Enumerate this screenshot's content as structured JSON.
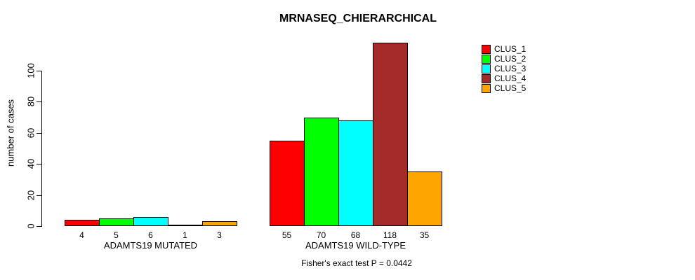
{
  "title": "MRNASEQ_CHIERARCHICAL",
  "footer": "Fisher's exact test P = 0.0442",
  "chart_data": {
    "type": "bar",
    "title": "MRNASEQ_CHIERARCHICAL",
    "ylabel": "number of cases",
    "xlabel": "",
    "categories": [
      "ADAMTS19 MUTATED",
      "ADAMTS19 WILD-TYPE"
    ],
    "series": [
      {
        "name": "CLUS_1",
        "color": "#FF0000",
        "values": [
          4,
          55
        ]
      },
      {
        "name": "CLUS_2",
        "color": "#00FF00",
        "values": [
          5,
          70
        ]
      },
      {
        "name": "CLUS_3",
        "color": "#00FFFF",
        "values": [
          6,
          68
        ]
      },
      {
        "name": "CLUS_4",
        "color": "#A52A2A",
        "values": [
          1,
          118
        ]
      },
      {
        "name": "CLUS_5",
        "color": "#FFA500",
        "values": [
          3,
          35
        ]
      }
    ],
    "show_value_labels": true,
    "yticks": [
      0,
      20,
      40,
      60,
      80,
      100
    ],
    "ylim": [
      0,
      120
    ],
    "grid": false,
    "legend_position": "top-right",
    "annotation": "Fisher's exact test P = 0.0442"
  }
}
